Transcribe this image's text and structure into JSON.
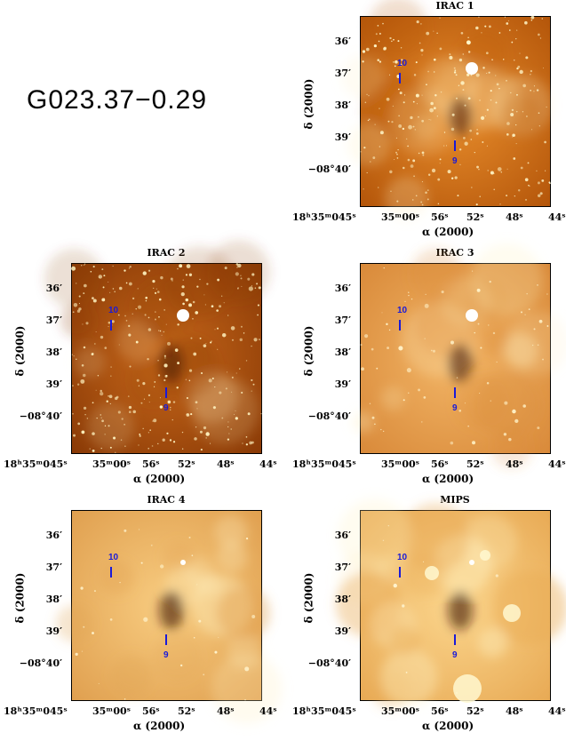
{
  "title": "G023.37−0.29",
  "panels": [
    {
      "name": "IRAC 1",
      "yticks": [
        "36′",
        "37′",
        "38′",
        "39′",
        "−08°40′"
      ],
      "xticks": [
        "18ʰ35ᵐ045ˢ",
        "35ᵐ00ˢ",
        "56ˢ",
        "52ˢ",
        "48ˢ",
        "44ˢ"
      ],
      "ylabel": "δ (2000)",
      "xlabel": "α (2000)",
      "markers": [
        "10",
        "9"
      ]
    },
    {
      "name": "IRAC 2",
      "yticks": [
        "36′",
        "37′",
        "38′",
        "39′",
        "−08°40′"
      ],
      "xticks": [
        "18ʰ35ᵐ045ˢ",
        "35ᵐ00ˢ",
        "56ˢ",
        "52ˢ",
        "48ˢ",
        "44ˢ"
      ],
      "ylabel": "δ (2000)",
      "xlabel": "α (2000)",
      "markers": [
        "10",
        "9"
      ]
    },
    {
      "name": "IRAC 3",
      "yticks": [
        "36′",
        "37′",
        "38′",
        "39′",
        "−08°40′"
      ],
      "xticks": [
        "18ʰ35ᵐ045ˢ",
        "35ᵐ00ˢ",
        "56ˢ",
        "52ˢ",
        "48ˢ",
        "44ˢ"
      ],
      "ylabel": "δ (2000)",
      "xlabel": "α (2000)",
      "markers": [
        "10",
        "9"
      ]
    },
    {
      "name": "IRAC 4",
      "yticks": [
        "36′",
        "37′",
        "38′",
        "39′",
        "−08°40′"
      ],
      "xticks": [
        "18ʰ35ᵐ045ˢ",
        "35ᵐ00ˢ",
        "56ˢ",
        "52ˢ",
        "48ˢ",
        "44ˢ"
      ],
      "ylabel": "δ (2000)",
      "xlabel": "α (2000)",
      "markers": [
        "10",
        "9"
      ]
    },
    {
      "name": "MIPS",
      "yticks": [
        "36′",
        "37′",
        "38′",
        "39′",
        "−08°40′"
      ],
      "xticks": [
        "18ʰ35ᵐ045ˢ",
        "35ᵐ00ˢ",
        "56ˢ",
        "52ˢ",
        "48ˢ",
        "44ˢ"
      ],
      "ylabel": "δ (2000)",
      "xlabel": "α (2000)",
      "markers": [
        "10",
        "9"
      ]
    }
  ],
  "colors": {
    "marker": "#1a1ad8"
  }
}
